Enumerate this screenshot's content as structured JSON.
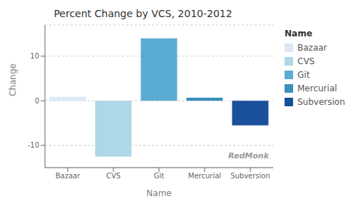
{
  "chart_data": {
    "type": "bar",
    "title": "Percent Change by VCS, 2010-2012",
    "xlabel": "Name",
    "ylabel": "Change",
    "categories": [
      "Bazaar",
      "CVS",
      "Git",
      "Mercurial",
      "Subversion"
    ],
    "values": [
      0.9,
      -12.5,
      14.0,
      0.7,
      -5.5
    ],
    "colors": [
      "#dce9f5",
      "#add8e6",
      "#5bacd4",
      "#3a8fbf",
      "#1a4f9c"
    ],
    "ylim": [
      -15,
      17
    ],
    "yticks": [
      -10,
      0,
      10
    ],
    "grid": true,
    "legend": "right",
    "legend_title": "Name",
    "annotations": [
      "RedMonk"
    ]
  }
}
